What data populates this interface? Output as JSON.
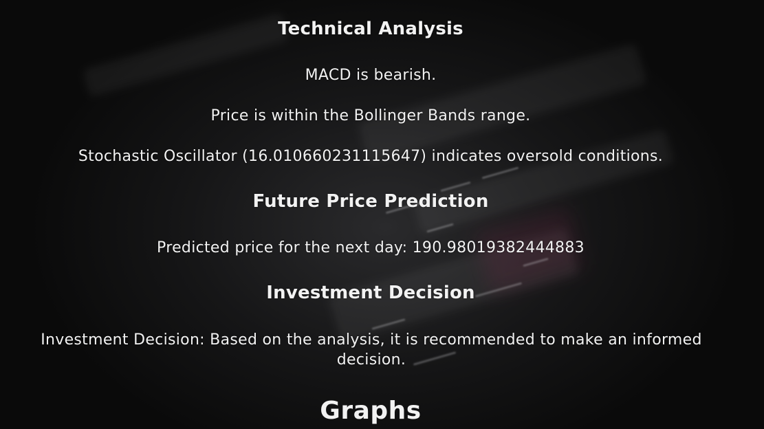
{
  "technical_analysis": {
    "heading": "Technical Analysis",
    "macd": "MACD is bearish.",
    "bollinger": "Price is within the Bollinger Bands range.",
    "stochastic": "Stochastic Oscillator (16.010660231115647) indicates oversold conditions."
  },
  "future_price_prediction": {
    "heading": "Future Price Prediction",
    "prediction": "Predicted price for the next day: 190.98019382444883"
  },
  "investment_decision": {
    "heading": "Investment Decision",
    "decision": "Investment Decision: Based on the analysis, it is recommended to make an informed decision."
  },
  "graphs": {
    "heading": "Graphs"
  }
}
